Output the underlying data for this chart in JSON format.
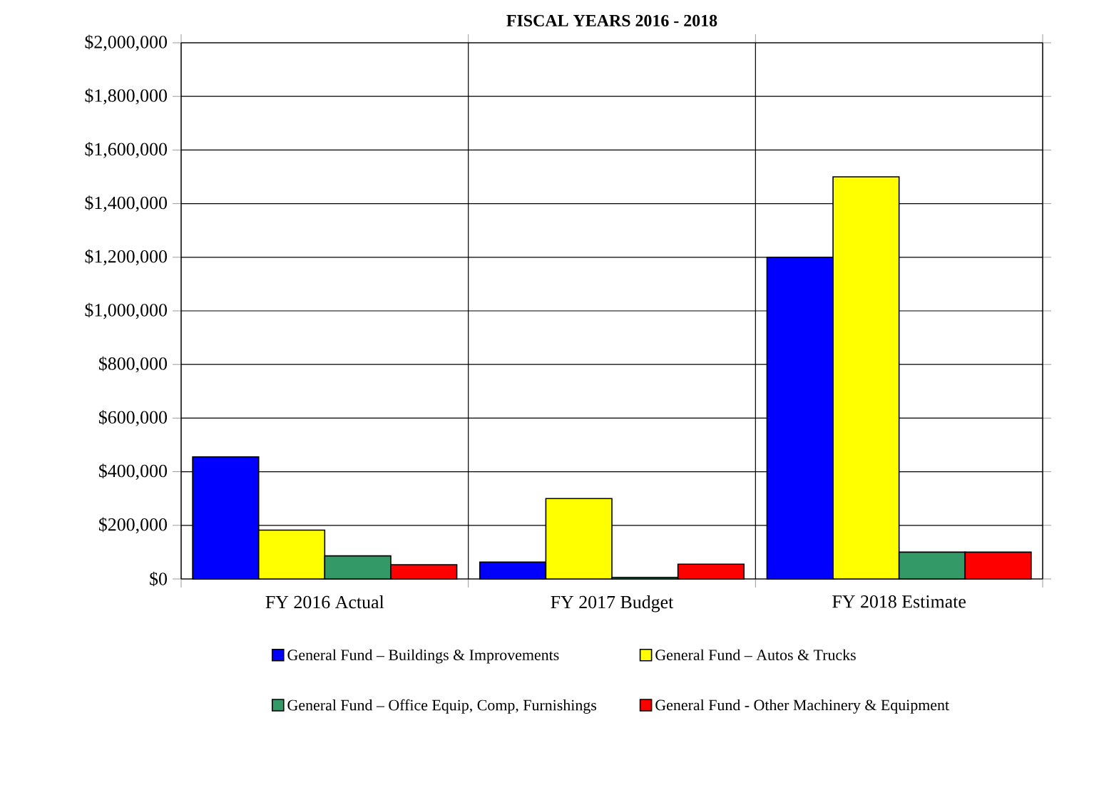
{
  "chart_data": {
    "type": "bar",
    "title": "FISCAL YEARS 2016 - 2018",
    "categories": [
      "FY 2016 Actual",
      "FY 2017 Budget",
      "FY 2018 Estimate"
    ],
    "series": [
      {
        "name": "General Fund – Buildings & Improvements",
        "color": "#0000ff",
        "values": [
          455000,
          63000,
          1200000
        ]
      },
      {
        "name": "General Fund – Autos & Trucks",
        "color": "#ffff00",
        "values": [
          182000,
          300000,
          1500000
        ]
      },
      {
        "name": "General Fund – Office Equip, Comp, Furnishings",
        "color": "#339966",
        "values": [
          86000,
          6000,
          100000
        ]
      },
      {
        "name": "General Fund - Other Machinery & Equipment",
        "color": "#ff0000",
        "values": [
          53000,
          55000,
          100000
        ]
      }
    ],
    "ylim": [
      0,
      2000000
    ],
    "yticks": [
      {
        "value": 0,
        "label": "$0"
      },
      {
        "value": 200000,
        "label": "$200,000"
      },
      {
        "value": 400000,
        "label": "$400,000"
      },
      {
        "value": 600000,
        "label": "$600,000"
      },
      {
        "value": 800000,
        "label": "$800,000"
      },
      {
        "value": 1000000,
        "label": "$1,000,000"
      },
      {
        "value": 1200000,
        "label": "$1,200,000"
      },
      {
        "value": 1400000,
        "label": "$1,400,000"
      },
      {
        "value": 1600000,
        "label": "$1,600,000"
      },
      {
        "value": 1800000,
        "label": "$1,800,000"
      },
      {
        "value": 2000000,
        "label": "$2,000,000"
      }
    ],
    "grid": true,
    "legend": "bottom"
  }
}
